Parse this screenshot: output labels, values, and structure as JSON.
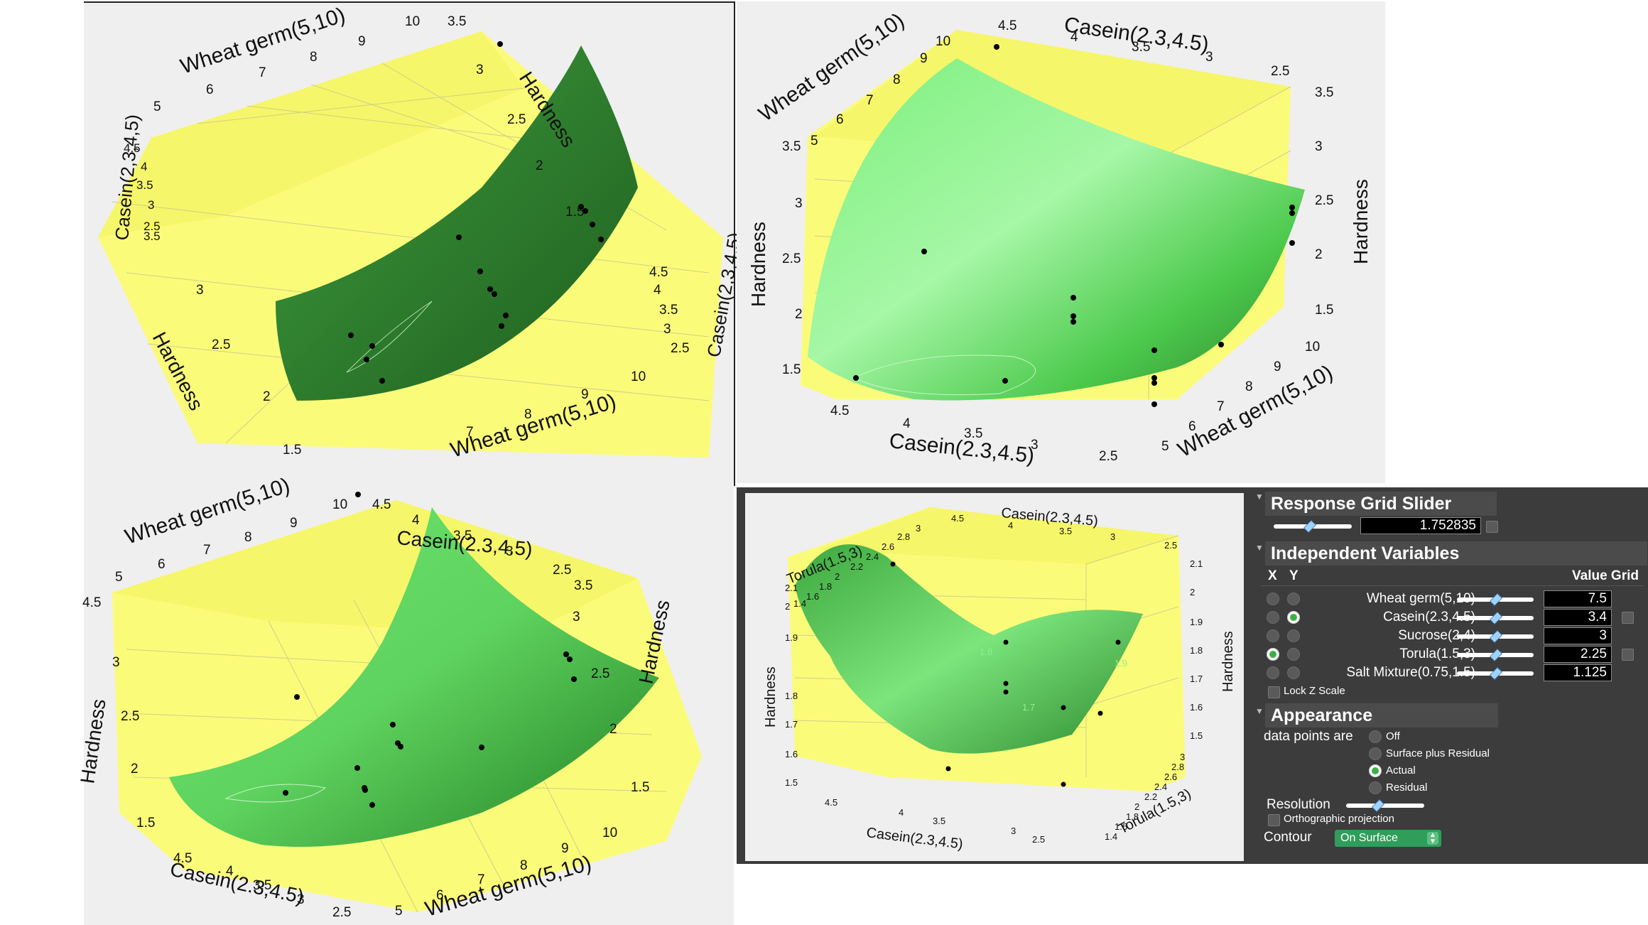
{
  "plots": [
    {
      "id": "plot-1",
      "labels": {
        "wheat_top": "Wheat germ(5,10)",
        "wheat_bottom": "Wheat germ(5,10)",
        "casein_left": "Casein(2,3,4,5)",
        "casein_right": "Casein(2,3,4,5)",
        "hardness_top": "Hardness",
        "hardness_left": "Hardness"
      },
      "ticks": {
        "wheat_top": [
          "5",
          "6",
          "7",
          "8",
          "9",
          "10"
        ],
        "wheat_bottom": [
          "7",
          "8",
          "9",
          "10"
        ],
        "casein_left": [
          "4.5",
          "4",
          "3.5",
          "3",
          "2.5"
        ],
        "casein_left_b": [
          "3.5"
        ],
        "casein_right": [
          "4.5",
          "4",
          "3.5",
          "3",
          "2.5"
        ],
        "hardness_top": [
          "3.5",
          "3",
          "2.5",
          "2",
          "1.5"
        ],
        "hardness_left": [
          "3",
          "2.5",
          "2",
          "1.5"
        ]
      }
    },
    {
      "id": "plot-2",
      "labels": {
        "wheat_top": "Wheat germ(5,10)",
        "wheat_right": "Wheat germ(5,10)",
        "casein_top": "Casein(2.3,4.5)",
        "casein_bottom": "Casein(2.3,4.5)",
        "hardness_left": "Hardness",
        "hardness_right": "Hardness"
      },
      "ticks": {
        "wheat_top": [
          "5",
          "6",
          "7",
          "8",
          "9",
          "10"
        ],
        "wheat_right": [
          "10",
          "9",
          "8",
          "7",
          "6",
          "5"
        ],
        "casein_top": [
          "4.5",
          "4",
          "3.5",
          "3",
          "2.5"
        ],
        "casein_bottom": [
          "4.5",
          "4",
          "3.5",
          "3",
          "2.5"
        ],
        "hardness_left": [
          "3.5",
          "3",
          "2.5",
          "2",
          "1.5"
        ],
        "hardness_right": [
          "3.5",
          "3",
          "2.5",
          "2",
          "1.5"
        ]
      }
    },
    {
      "id": "plot-3",
      "labels": {
        "wheat_top": "Wheat germ(5,10)",
        "wheat_bottom": "Wheat germ(5,10)",
        "casein_top": "Casein(2.3,4.5)",
        "casein_bottom": "Casein(2.3,4.5)",
        "hardness_left": "Hardness",
        "hardness_right": "Hardness"
      },
      "ticks": {
        "wheat_top": [
          "5",
          "6",
          "7",
          "8",
          "9",
          "10"
        ],
        "wheat_bottom": [
          "5",
          "6",
          "7",
          "8",
          "9",
          "10"
        ],
        "casein_top": [
          "4.5",
          "4",
          "3.5",
          "3",
          "2.5"
        ],
        "casein_bottom": [
          "4.5",
          "4",
          "3.5",
          "3",
          "2.5"
        ],
        "hardness_left": [
          "3",
          "2.5",
          "2",
          "1.5"
        ],
        "hardness_left_b": [
          "4.5"
        ],
        "hardness_right": [
          "3.5",
          "3",
          "2.5",
          "2",
          "1.5"
        ]
      }
    },
    {
      "id": "plot-4",
      "labels": {
        "torula_top": "Torula(1.5,3)",
        "torula_right": "Torula(1.5,3)",
        "casein_top": "Casein(2.3,4.5)",
        "casein_bottom": "Casein(2.3,4.5)",
        "hardness_left": "Hardness",
        "hardness_right": "Hardness"
      },
      "ticks": {
        "torula_top": [
          "1.4",
          "1.6",
          "1.8",
          "2",
          "2.2",
          "2.4",
          "2.6",
          "2.8",
          "3"
        ],
        "torula_right": [
          "3",
          "2.8",
          "2.6",
          "2.4",
          "2.2",
          "2",
          "1.8",
          "1.6",
          "1.4"
        ],
        "casein_top": [
          "4.5",
          "4",
          "3.5",
          "3",
          "2.5"
        ],
        "casein_bottom": [
          "4.5",
          "4",
          "3.5",
          "3",
          "2.5"
        ],
        "hardness_left": [
          "2.1",
          "2",
          "1.9",
          "1.8",
          "1.7",
          "1.6",
          "1.5"
        ],
        "hardness_right": [
          "2.1",
          "2",
          "1.9",
          "1.8",
          "1.7",
          "1.6",
          "1.5"
        ],
        "contour_labels": [
          "1.7",
          "1.8",
          "1.9"
        ]
      }
    }
  ],
  "panel": {
    "response_grid": {
      "title": "Response Grid Slider",
      "value": "1.752835",
      "level": 0.45
    },
    "independent": {
      "title": "Independent Variables",
      "col_x": "X",
      "col_y": "Y",
      "col_value_grid": "Value Grid",
      "variables": [
        {
          "name": "Wheat germ(5,10)",
          "value": "7.5",
          "x": false,
          "y": false,
          "level": 0.5,
          "grid": false
        },
        {
          "name": "Casein(2.3,4.5)",
          "value": "3.4",
          "x": false,
          "y": true,
          "level": 0.5,
          "grid": true
        },
        {
          "name": "Sucrose(2,4)",
          "value": "3",
          "x": false,
          "y": false,
          "level": 0.5,
          "grid": false
        },
        {
          "name": "Torula(1.5,3)",
          "value": "2.25",
          "x": true,
          "y": false,
          "level": 0.5,
          "grid": true
        },
        {
          "name": "Salt Mixture(0.75,1.5)",
          "value": "1.125",
          "x": false,
          "y": false,
          "level": 0.5,
          "grid": false
        }
      ],
      "lock_z": "Lock Z Scale"
    },
    "appearance": {
      "title": "Appearance",
      "data_points_label": "data points are",
      "options": [
        "Off",
        "Surface plus Residual",
        "Actual",
        "Residual"
      ],
      "selected": "Actual",
      "resolution_label": "Resolution",
      "resolution_level": 0.4,
      "ortho_label": "Orthographic projection",
      "contour_label": "Contour",
      "contour_value": "On Surface"
    }
  }
}
